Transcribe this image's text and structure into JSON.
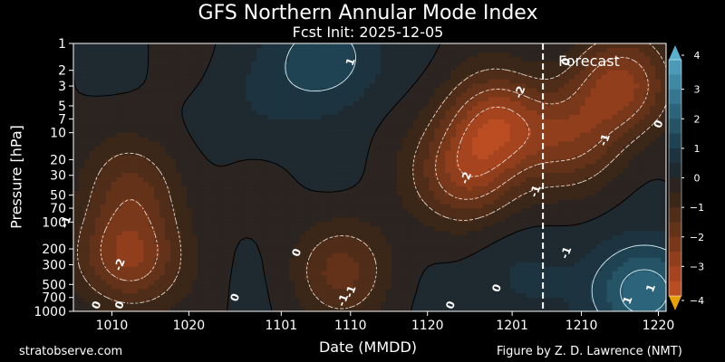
{
  "chart_data": {
    "type": "heatmap",
    "title": "GFS Northern Annular Mode Index",
    "subtitle": "Fcst Init: 2025-12-05",
    "xlabel": "Date (MMDD)",
    "ylabel": "Pressure [hPa]",
    "x_start": "2025-10-05",
    "x_end": "2025-12-21",
    "x_ticks": [
      {
        "date": "2025-10-10",
        "label": "1010"
      },
      {
        "date": "2025-10-20",
        "label": "1020"
      },
      {
        "date": "2025-11-01",
        "label": "1101"
      },
      {
        "date": "2025-11-10",
        "label": "1110"
      },
      {
        "date": "2025-11-20",
        "label": "1120"
      },
      {
        "date": "2025-12-01",
        "label": "1201"
      },
      {
        "date": "2025-12-10",
        "label": "1210"
      },
      {
        "date": "2025-12-20",
        "label": "1220"
      }
    ],
    "y_scale": "log",
    "y_range": [
      1000,
      1
    ],
    "y_ticks": [
      1,
      2,
      3,
      5,
      7,
      10,
      20,
      30,
      50,
      70,
      100,
      200,
      300,
      500,
      700,
      1000
    ],
    "forecast_start": "2025-12-05",
    "forecast_label": "Forecast",
    "colorbar": {
      "range": [
        -4,
        4
      ],
      "ticks": [
        4,
        3,
        2,
        1,
        0,
        -1,
        -2,
        -3,
        -4
      ],
      "extend": "both",
      "colors_high_to_low": [
        "#4a9ab8",
        "#3f89a6",
        "#357791",
        "#2c657b",
        "#255466",
        "#1f4352",
        "#1d3440",
        "#1e2930",
        "#2b2420",
        "#3b2718",
        "#4f2d18",
        "#643219",
        "#7a381b",
        "#913e1d",
        "#a6441f",
        "#bb4d22"
      ],
      "over_color": "#5ab0cf",
      "under_color": "#e8a200"
    },
    "features": [
      {
        "kind": "negative",
        "date": "2025-10-12",
        "pressure": 250,
        "value": -2.6
      },
      {
        "kind": "negative",
        "date": "2025-10-13",
        "pressure": 40,
        "value": -1.4
      },
      {
        "kind": "positive",
        "date": "2025-11-07",
        "pressure": 1.4,
        "value": 1.5
      },
      {
        "kind": "negative",
        "date": "2025-11-09",
        "pressure": 350,
        "value": -1.6
      },
      {
        "kind": "negative",
        "date": "2025-11-25",
        "pressure": 30,
        "value": -2.4
      },
      {
        "kind": "negative",
        "date": "2025-11-29",
        "pressure": 8,
        "value": -3.0
      },
      {
        "kind": "positive",
        "date": "2025-12-01",
        "pressure": 400,
        "value": 0.6
      },
      {
        "kind": "negative",
        "date": "2025-12-09",
        "pressure": 12,
        "value": -1.8
      },
      {
        "kind": "negative",
        "date": "2025-12-15",
        "pressure": 3,
        "value": -2.6
      },
      {
        "kind": "positive",
        "date": "2025-12-18",
        "pressure": 600,
        "value": 2.6
      },
      {
        "kind": "positive",
        "date": "2025-10-30",
        "pressure": 5,
        "value": 0.5
      }
    ],
    "contour_labels": [
      {
        "text": "1",
        "date": "2025-11-10",
        "pressure": 1.6
      },
      {
        "text": "0",
        "date": "2025-12-08",
        "pressure": 1.6
      },
      {
        "text": "-2",
        "date": "2025-12-02",
        "pressure": 3.5
      },
      {
        "text": "0",
        "date": "2025-12-20",
        "pressure": 8
      },
      {
        "text": "-1",
        "date": "2025-12-13",
        "pressure": 12
      },
      {
        "text": "-2",
        "date": "2025-11-25",
        "pressure": 32
      },
      {
        "text": "-1",
        "date": "2025-12-04",
        "pressure": 45
      },
      {
        "text": "-1",
        "date": "2025-10-04",
        "pressure": 100
      },
      {
        "text": "0",
        "date": "2025-11-03",
        "pressure": 220
      },
      {
        "text": "-1",
        "date": "2025-12-08",
        "pressure": 220
      },
      {
        "text": "-2",
        "date": "2025-10-11",
        "pressure": 300
      },
      {
        "text": "0",
        "date": "2025-11-29",
        "pressure": 550
      },
      {
        "text": "1",
        "date": "2025-12-19",
        "pressure": 550
      },
      {
        "text": "-1",
        "date": "2025-11-10",
        "pressure": 600
      },
      {
        "text": "0",
        "date": "2025-10-26",
        "pressure": 700
      },
      {
        "text": "0",
        "date": "2025-10-08",
        "pressure": 850
      },
      {
        "text": "0",
        "date": "2025-10-11",
        "pressure": 850
      },
      {
        "text": "0",
        "date": "2025-11-23",
        "pressure": 850
      },
      {
        "text": "-1",
        "date": "2025-11-09",
        "pressure": 750
      },
      {
        "text": "1",
        "date": "2025-12-16",
        "pressure": 750
      }
    ]
  },
  "footer": {
    "site": "stratobserve.com",
    "credit": "Figure by Z. D. Lawrence (NMT)"
  }
}
